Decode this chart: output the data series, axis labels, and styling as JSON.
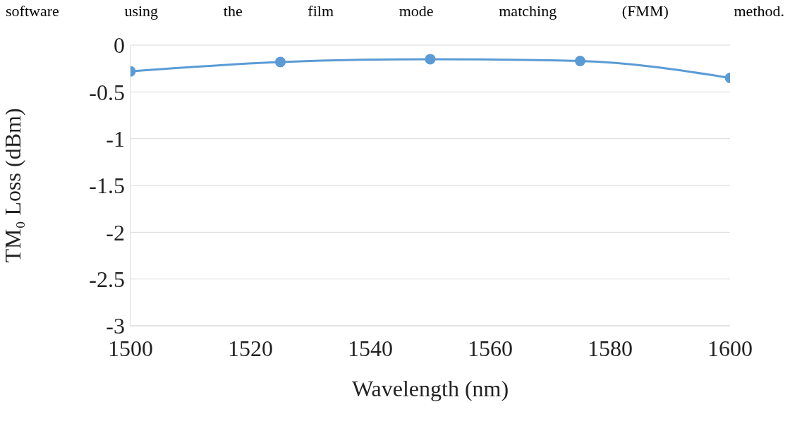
{
  "chart_data": {
    "type": "line",
    "annotations": [
      "software using the film mode matching (FMM) method."
    ],
    "xlabel": "Wavelength (nm)",
    "ylabel": "TM₀ Loss (dBm)",
    "x": [
      1500,
      1525,
      1550,
      1575,
      1600
    ],
    "series": [
      {
        "color": "#5b9bd5",
        "values": [
          -0.28,
          -0.18,
          -0.15,
          -0.17,
          -0.35
        ]
      }
    ],
    "xlim": [
      1500,
      1600
    ],
    "xticks": [
      1500,
      1520,
      1540,
      1560,
      1580,
      1600
    ],
    "ylim": [
      -3,
      0
    ],
    "yticks": [
      -3,
      -2.5,
      -2,
      -1.5,
      -1,
      -0.5,
      0
    ],
    "grid": "y",
    "marker": "circle",
    "line_style": "solid",
    "legend": false
  }
}
